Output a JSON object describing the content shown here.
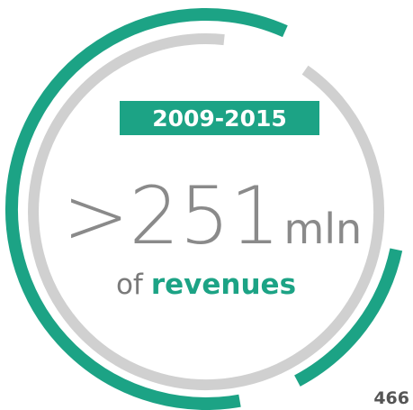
{
  "badge": "2009-2015",
  "amount": ">251",
  "unit": "mln",
  "caption": {
    "prefix": "of",
    "highlight": "revenues"
  },
  "page_number": "466"
}
